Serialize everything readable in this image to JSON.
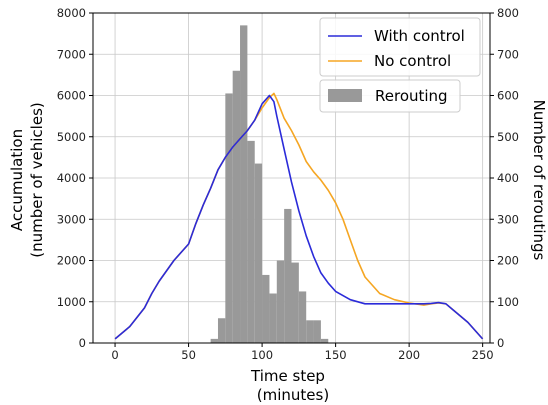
{
  "chart_data": {
    "type": "line",
    "xlabel": [
      "Time step",
      "(minutes)"
    ],
    "ylabel_left": [
      "Accumulation",
      "(number  of vehicles)"
    ],
    "ylabel_right": "Number of reroutings",
    "xlim": [
      -15,
      255
    ],
    "ylim_left": [
      0,
      8000
    ],
    "ylim_right": [
      0,
      800
    ],
    "x_ticks": [
      0,
      50,
      100,
      150,
      200,
      250
    ],
    "y_ticks_left": [
      0,
      1000,
      2000,
      3000,
      4000,
      5000,
      6000,
      7000,
      8000
    ],
    "y_ticks_right": [
      0,
      100,
      200,
      300,
      400,
      500,
      600,
      700,
      800
    ],
    "grid": true,
    "legend_position": "top-right",
    "colors": {
      "with_control": "#2b2bd9",
      "no_control": "#f5a623",
      "rerouting": "#999999"
    },
    "series": [
      {
        "name": "With control",
        "axis": "left",
        "x": [
          0,
          10,
          20,
          25,
          30,
          40,
          50,
          55,
          60,
          65,
          70,
          75,
          80,
          85,
          90,
          95,
          100,
          105,
          108,
          110,
          115,
          120,
          125,
          130,
          135,
          140,
          145,
          150,
          160,
          170,
          180,
          190,
          200,
          210,
          215,
          220,
          225,
          230,
          240,
          250
        ],
        "y": [
          100,
          400,
          850,
          1200,
          1500,
          2000,
          2400,
          2900,
          3350,
          3750,
          4200,
          4500,
          4750,
          4950,
          5150,
          5400,
          5800,
          6000,
          5850,
          5500,
          4700,
          3900,
          3200,
          2600,
          2100,
          1700,
          1450,
          1250,
          1050,
          950,
          950,
          950,
          950,
          950,
          960,
          980,
          950,
          800,
          500,
          100
        ]
      },
      {
        "name": "No control",
        "axis": "left",
        "x": [
          0,
          10,
          20,
          25,
          30,
          40,
          50,
          55,
          60,
          65,
          70,
          75,
          80,
          85,
          90,
          95,
          100,
          105,
          108,
          110,
          115,
          120,
          125,
          130,
          135,
          140,
          145,
          150,
          155,
          160,
          165,
          170,
          180,
          190,
          200,
          210,
          215,
          220,
          225,
          230,
          240,
          250
        ],
        "y": [
          100,
          400,
          850,
          1200,
          1500,
          2000,
          2400,
          2900,
          3350,
          3750,
          4200,
          4500,
          4750,
          4950,
          5150,
          5400,
          5700,
          5950,
          6050,
          5900,
          5450,
          5150,
          4800,
          4400,
          4150,
          3950,
          3700,
          3400,
          3000,
          2500,
          2000,
          1600,
          1200,
          1050,
          970,
          920,
          950,
          970,
          950,
          800,
          500,
          100
        ]
      }
    ],
    "bars": {
      "name": "Rerouting",
      "axis": "right",
      "bin_width": 5,
      "x_start": [
        65,
        70,
        75,
        80,
        85,
        90,
        95,
        100,
        105,
        110,
        115,
        120,
        125,
        130,
        135,
        140
      ],
      "values": [
        10,
        60,
        605,
        660,
        770,
        490,
        435,
        165,
        120,
        200,
        325,
        195,
        125,
        55,
        55,
        10
      ]
    }
  }
}
